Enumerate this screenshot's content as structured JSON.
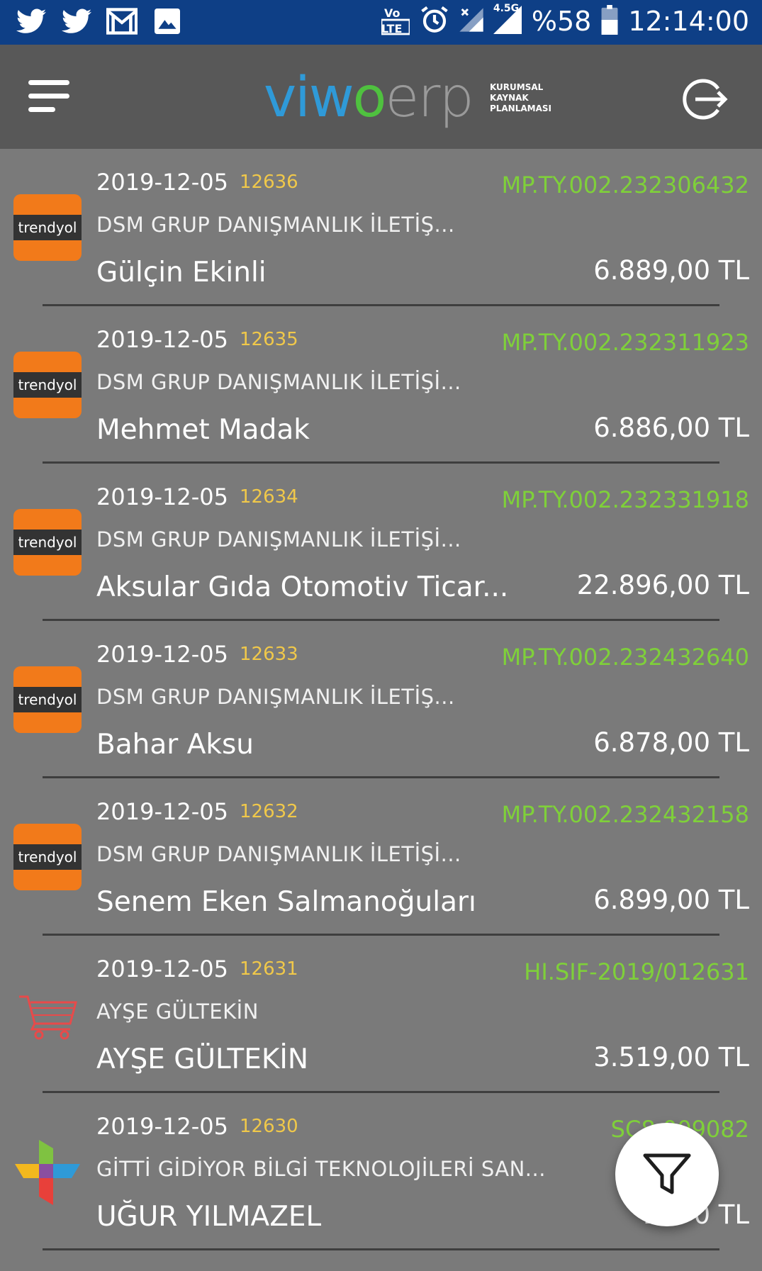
{
  "status_bar": {
    "network_type": "4.5G",
    "battery": "%58",
    "time": "12:14:00",
    "icons": [
      "twitter-icon",
      "twitter-icon",
      "gmail-icon",
      "image-icon",
      "volte-icon",
      "alarm-icon",
      "signal-icon",
      "battery-icon"
    ]
  },
  "app_bar": {
    "logo_parts": [
      "vi",
      "w",
      "o",
      "erp"
    ],
    "logo_subtitle": [
      "KURUMSAL",
      "KAYNAK",
      "PLANLAMASI"
    ],
    "colors": {
      "blue": "#2f9ad8",
      "green": "#4fc13f",
      "gray": "#9a9a9a"
    }
  },
  "orders": [
    {
      "date": "2019-12-05",
      "number": "12636",
      "code": "MP.TY.002.232306432",
      "company": "DSM GRUP DANIŞMANLIK İLETİŞ...",
      "customer": "Gülçin Ekinli",
      "amount": "6.889,00 TL",
      "source": "trendyol",
      "source_label": "trendyol"
    },
    {
      "date": "2019-12-05",
      "number": "12635",
      "code": "MP.TY.002.232311923",
      "company": "DSM GRUP DANIŞMANLIK İLETİŞİ...",
      "customer": "Mehmet Madak",
      "amount": "6.886,00 TL",
      "source": "trendyol",
      "source_label": "trendyol"
    },
    {
      "date": "2019-12-05",
      "number": "12634",
      "code": "MP.TY.002.232331918",
      "company": "DSM GRUP DANIŞMANLIK İLETİŞİ...",
      "customer": "Aksular Gıda Otomotiv Ticar...",
      "amount": "22.896,00 TL",
      "source": "trendyol",
      "source_label": "trendyol"
    },
    {
      "date": "2019-12-05",
      "number": "12633",
      "code": "MP.TY.002.232432640",
      "company": "DSM GRUP DANIŞMANLIK İLETİŞ...",
      "customer": "Bahar Aksu",
      "amount": "6.878,00 TL",
      "source": "trendyol",
      "source_label": "trendyol"
    },
    {
      "date": "2019-12-05",
      "number": "12632",
      "code": "MP.TY.002.232432158",
      "company": "DSM GRUP DANIŞMANLIK İLETİŞİ...",
      "customer": "Senem  Eken Salmanoğuları",
      "amount": "6.899,00 TL",
      "source": "trendyol",
      "source_label": "trendyol"
    },
    {
      "date": "2019-12-05",
      "number": "12631",
      "code": "HI.SIF-2019/012631",
      "company": "AYŞE GÜLTEKİN",
      "customer": "AYŞE GÜLTEKİN",
      "amount": "3.519,00 TL",
      "source": "cart",
      "source_label": ""
    },
    {
      "date": "2019-12-05",
      "number": "12630",
      "code": "SC8  009082",
      "company": "GİTTİ GİDİYOR BİLGİ TEKNOLOJİLERİ SAN...",
      "customer": "UĞUR YILMAZEL",
      "amount": "2.5   0 TL",
      "source": "gittigidiyor",
      "source_label": ""
    }
  ],
  "colors": {
    "status_bar": "#0e3f86",
    "app_bar": "#585858",
    "list_bg": "#7a7a7a",
    "order_number": "#f0c84a",
    "order_code": "#7fd03a",
    "trendyol_orange": "#f27a1a"
  },
  "fab": {
    "icon": "filter-icon"
  }
}
